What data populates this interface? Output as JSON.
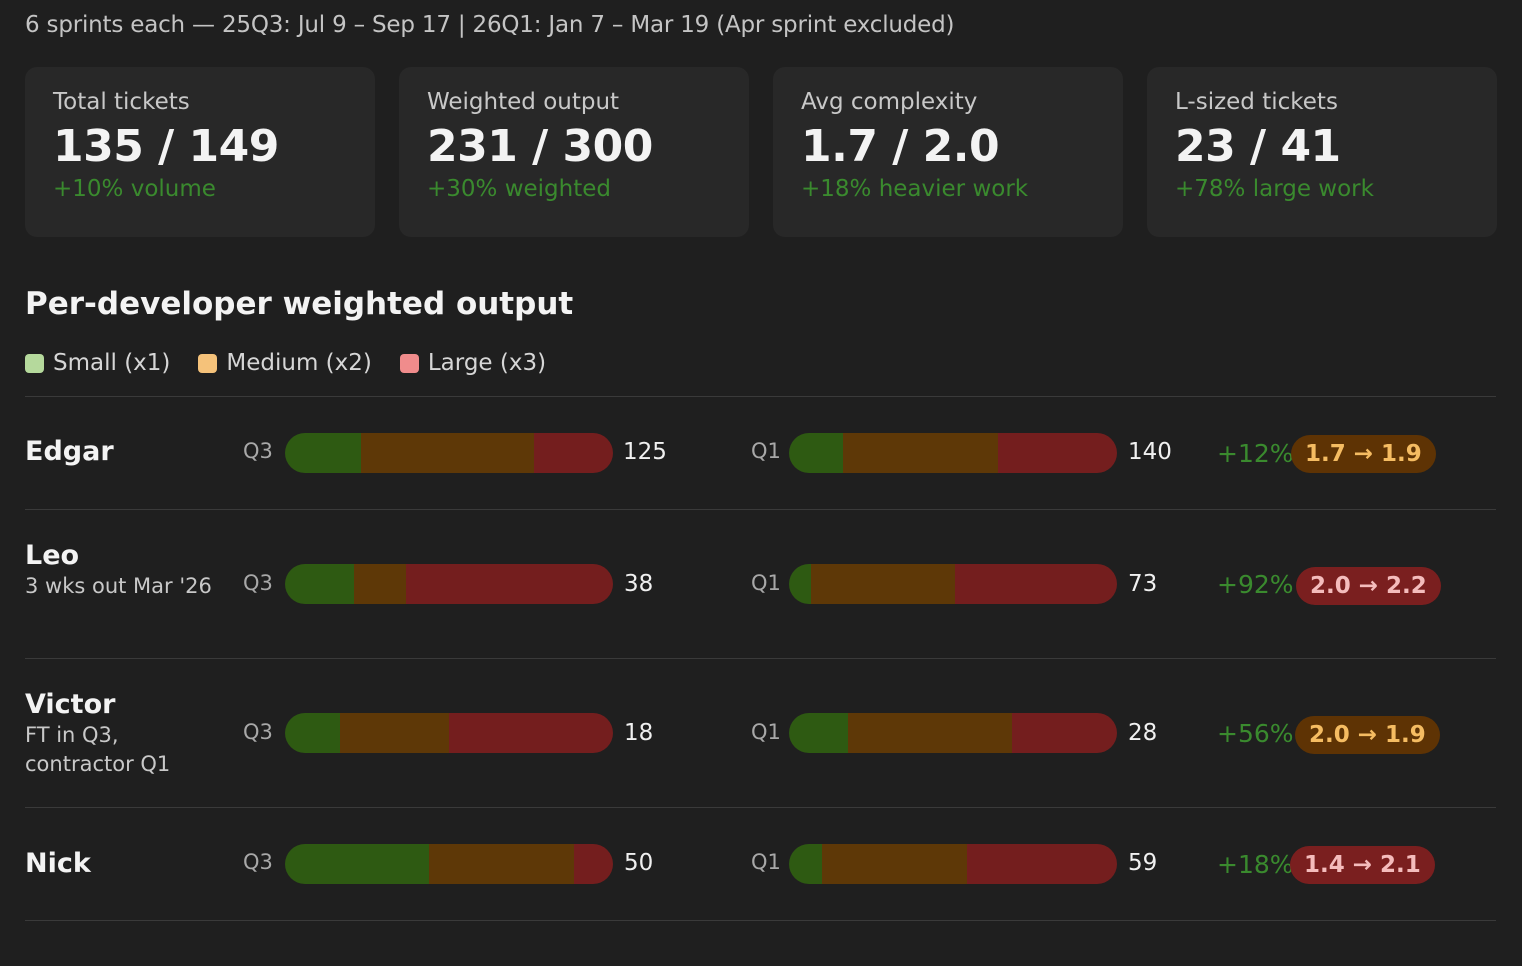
{
  "subtitle": "6 sprints each — 25Q3: Jul 9 – Sep 17  |  26Q1: Jan 7 – Mar 19 (Apr sprint excluded)",
  "cards": [
    {
      "label": "Total tickets",
      "value": "135 / 149",
      "change": "+10% volume"
    },
    {
      "label": "Weighted output",
      "value": "231 / 300",
      "change": "+30% weighted"
    },
    {
      "label": "Avg complexity",
      "value": "1.7 / 2.0",
      "change": "+18% heavier work"
    },
    {
      "label": "L-sized tickets",
      "value": "23 / 41",
      "change": "+78% large work"
    }
  ],
  "section_title": "Per-developer weighted output",
  "legend": [
    {
      "label": "Small (x1)",
      "color": "#b5d99c"
    },
    {
      "label": "Medium (x2)",
      "color": "#f5c27a"
    },
    {
      "label": "Large (x3)",
      "color": "#f08c8c"
    }
  ],
  "colors": {
    "small": "#2e5a12",
    "medium": "#5e3807",
    "large": "#741e1e",
    "positive": "#3a8a2e"
  },
  "chart_data": {
    "type": "bar",
    "stacked": true,
    "orientation": "horizontal",
    "categories": [
      "Edgar",
      "Leo",
      "Victor",
      "Nick"
    ],
    "series_names": [
      "Small (x1)",
      "Medium (x2)",
      "Large (x3)"
    ],
    "rows": [
      {
        "name": "Edgar",
        "note": "",
        "q3": {
          "label": "Q3",
          "total": "125",
          "small": 29,
          "medium": 66,
          "large": 30
        },
        "q1": {
          "label": "Q1",
          "total": "140",
          "small": 23,
          "medium": 66,
          "large": 51
        },
        "change": "+12%",
        "complexity": "1.7 → 1.9",
        "complexity_status": "warn"
      },
      {
        "name": "Leo",
        "note": "3 wks out Mar '26",
        "q3": {
          "label": "Q3",
          "total": "38",
          "small": 8,
          "medium": 6,
          "large": 24
        },
        "q1": {
          "label": "Q1",
          "total": "73",
          "small": 5,
          "medium": 32,
          "large": 36
        },
        "change": "+92%",
        "complexity": "2.0 → 2.2",
        "complexity_status": "alert"
      },
      {
        "name": "Victor",
        "note": "FT in Q3, contractor Q1",
        "q3": {
          "label": "Q3",
          "total": "18",
          "small": 3,
          "medium": 6,
          "large": 9
        },
        "q1": {
          "label": "Q1",
          "total": "28",
          "small": 5,
          "medium": 14,
          "large": 9
        },
        "change": "+56%",
        "complexity": "2.0 → 1.9",
        "complexity_status": "warn"
      },
      {
        "name": "Nick",
        "note": "",
        "q3": {
          "label": "Q3",
          "total": "50",
          "small": 22,
          "medium": 22,
          "large": 6
        },
        "q1": {
          "label": "Q1",
          "total": "59",
          "small": 6,
          "medium": 26,
          "large": 27
        },
        "change": "+18%",
        "complexity": "1.4 → 2.1",
        "complexity_status": "alert"
      }
    ]
  }
}
